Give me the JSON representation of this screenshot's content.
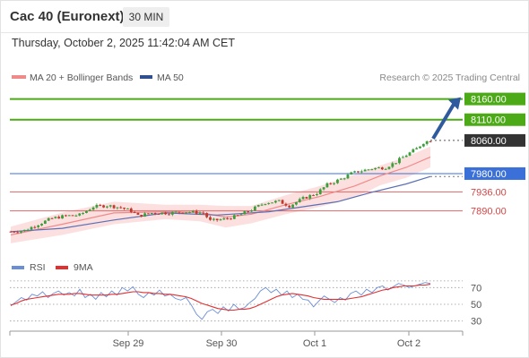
{
  "header": {
    "title": "Cac 40 (Euronext)",
    "timeframe": "30 MIN"
  },
  "datetime": "Thursday, October 2, 2025 11:42:04 AM CET",
  "colors": {
    "candle_up": "#3a9e3a",
    "candle_down": "#c0392b",
    "bollinger_fill": "#fbd5d5",
    "ma20": "#f08a8a",
    "ma50": "#5b6fb5",
    "target_green": "#4caa16",
    "pivot_blue": "#3a70d8",
    "support_red": "#e06666",
    "arrow": "#2f5a9e",
    "rsi": "#6b8fd4",
    "rsi_ma": "#e03030",
    "current_tag": "#333333"
  },
  "main_legend": {
    "ma20": "MA 20 + Bollinger Bands",
    "ma50": "MA 50"
  },
  "credit": "Research © 2025 Trading Central",
  "rsi_legend": {
    "rsi": "RSI",
    "ma9": "9MA"
  },
  "chart_data": [
    {
      "type": "candlestick",
      "instrument": "Cac 40 (Euronext)",
      "interval": "30 MIN",
      "ylim": [
        7805,
        8185
      ],
      "x_tick_labels": [
        "Sep 29",
        "Sep 30",
        "Oct 1",
        "Oct 2"
      ],
      "levels": [
        {
          "value": 8160.0,
          "label": "8160.00",
          "kind": "target"
        },
        {
          "value": 8110.0,
          "label": "8110.00",
          "kind": "target"
        },
        {
          "value": 8060.0,
          "label": "8060.00",
          "kind": "current"
        },
        {
          "value": 7980.0,
          "label": "7980.00",
          "kind": "pivot"
        },
        {
          "value": 7936.0,
          "label": "7936.00",
          "kind": "support"
        },
        {
          "value": 7890.0,
          "label": "7890.00",
          "kind": "support"
        }
      ],
      "close_path": [
        [
          0,
          7840
        ],
        [
          8,
          7843
        ],
        [
          16,
          7858
        ],
        [
          24,
          7872
        ],
        [
          32,
          7878
        ],
        [
          40,
          7880
        ],
        [
          48,
          7900
        ],
        [
          56,
          7903
        ],
        [
          64,
          7898
        ],
        [
          70,
          7890
        ],
        [
          74,
          7878
        ],
        [
          82,
          7885
        ],
        [
          92,
          7885
        ],
        [
          102,
          7888
        ],
        [
          112,
          7885
        ],
        [
          116,
          7866
        ],
        [
          124,
          7870
        ],
        [
          132,
          7878
        ],
        [
          140,
          7893
        ],
        [
          148,
          7910
        ],
        [
          156,
          7913
        ],
        [
          162,
          7902
        ],
        [
          170,
          7920
        ],
        [
          178,
          7933
        ],
        [
          184,
          7953
        ],
        [
          192,
          7967
        ],
        [
          198,
          7980
        ],
        [
          202,
          7985
        ],
        [
          210,
          7992
        ],
        [
          218,
          7995
        ],
        [
          224,
          8008
        ],
        [
          230,
          8025
        ],
        [
          236,
          8040
        ],
        [
          240,
          8055
        ],
        [
          244,
          8060
        ]
      ],
      "ma20_path": [
        [
          0,
          7832
        ],
        [
          30,
          7858
        ],
        [
          60,
          7885
        ],
        [
          90,
          7888
        ],
        [
          110,
          7886
        ],
        [
          125,
          7875
        ],
        [
          140,
          7882
        ],
        [
          160,
          7905
        ],
        [
          180,
          7925
        ],
        [
          200,
          7950
        ],
        [
          215,
          7975
        ],
        [
          230,
          7995
        ],
        [
          244,
          8020
        ]
      ],
      "ma50_path": [
        [
          0,
          7840
        ],
        [
          30,
          7848
        ],
        [
          60,
          7868
        ],
        [
          90,
          7885
        ],
        [
          120,
          7880
        ],
        [
          150,
          7888
        ],
        [
          170,
          7900
        ],
        [
          190,
          7912
        ],
        [
          210,
          7935
        ],
        [
          230,
          7955
        ],
        [
          244,
          7973
        ]
      ],
      "bollinger_upper": [
        [
          0,
          7852
        ],
        [
          30,
          7886
        ],
        [
          60,
          7912
        ],
        [
          90,
          7905
        ],
        [
          110,
          7905
        ],
        [
          125,
          7902
        ],
        [
          140,
          7902
        ],
        [
          160,
          7928
        ],
        [
          180,
          7950
        ],
        [
          200,
          7978
        ],
        [
          215,
          8000
        ],
        [
          230,
          8020
        ],
        [
          244,
          8045
        ]
      ],
      "bollinger_lower": [
        [
          0,
          7812
        ],
        [
          30,
          7832
        ],
        [
          60,
          7858
        ],
        [
          90,
          7870
        ],
        [
          110,
          7865
        ],
        [
          125,
          7850
        ],
        [
          140,
          7860
        ],
        [
          160,
          7882
        ],
        [
          180,
          7900
        ],
        [
          200,
          7922
        ],
        [
          215,
          7952
        ],
        [
          230,
          7970
        ],
        [
          244,
          7995
        ]
      ],
      "forecast": {
        "from": 8060,
        "to": 8160
      }
    },
    {
      "type": "line",
      "title": "RSI",
      "ylim": [
        20,
        80
      ],
      "y_ticks": [
        70,
        50,
        30
      ],
      "series": [
        {
          "name": "RSI",
          "values": [
            48,
            53,
            58,
            55,
            62,
            60,
            65,
            58,
            63,
            66,
            61,
            64,
            60,
            68,
            58,
            62,
            56,
            64,
            59,
            66,
            61,
            70,
            66,
            71,
            62,
            58,
            64,
            61,
            67,
            60,
            62,
            57,
            55,
            58,
            49,
            38,
            32,
            41,
            44,
            39,
            47,
            42,
            50,
            44,
            46,
            52,
            57,
            66,
            70,
            64,
            68,
            61,
            66,
            58,
            62,
            56,
            55,
            47,
            54,
            60,
            56,
            52,
            58,
            55,
            63,
            66,
            61,
            68,
            64,
            70,
            72,
            67,
            71,
            75,
            73,
            70,
            72,
            74,
            76,
            75
          ]
        },
        {
          "name": "9MA",
          "values": [
            49,
            51,
            54,
            56,
            57,
            58,
            59,
            60,
            61,
            62,
            62,
            62,
            63,
            63,
            62,
            61,
            61,
            61,
            61,
            62,
            62,
            63,
            64,
            65,
            65,
            64,
            64,
            63,
            63,
            62,
            62,
            61,
            60,
            59,
            57,
            54,
            51,
            49,
            47,
            45,
            44,
            43,
            43,
            44,
            44,
            45,
            47,
            50,
            53,
            56,
            59,
            61,
            62,
            63,
            62,
            61,
            60,
            58,
            57,
            56,
            56,
            56,
            56,
            56,
            57,
            58,
            59,
            61,
            63,
            65,
            67,
            68,
            70,
            71,
            72,
            72,
            72,
            73,
            73,
            74
          ]
        }
      ]
    }
  ]
}
